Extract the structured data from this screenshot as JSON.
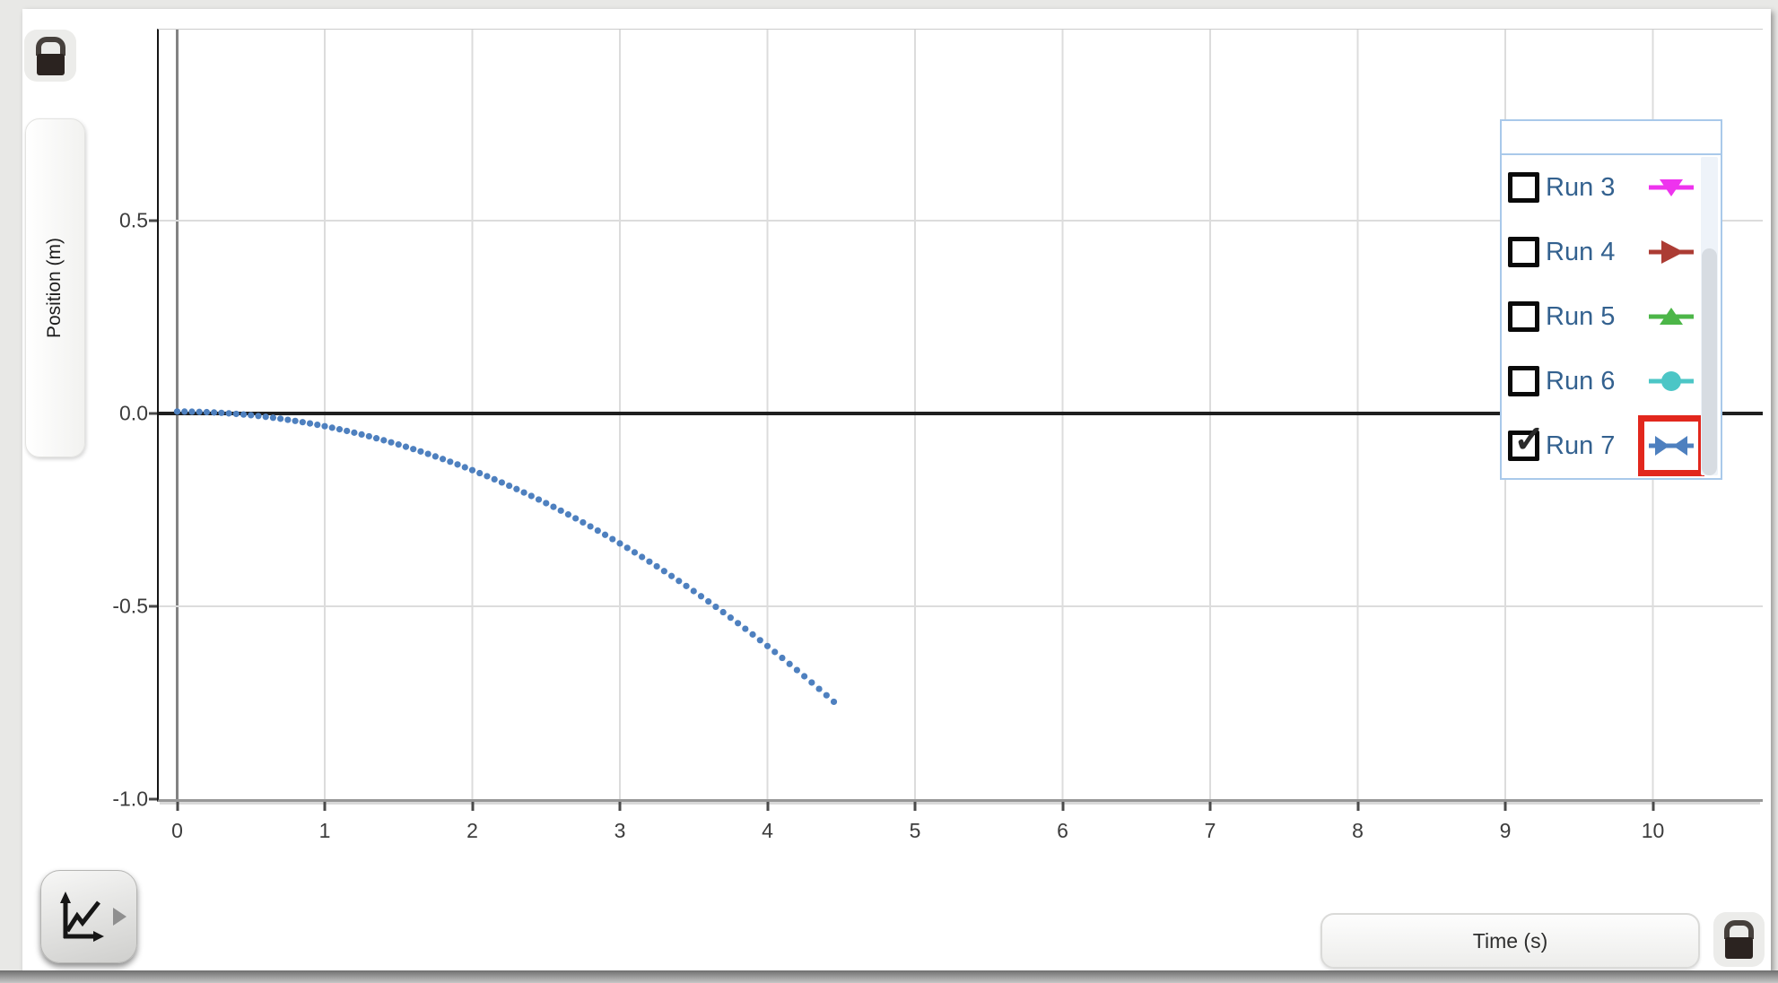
{
  "app": {
    "name": "graph-analysis-view"
  },
  "colors": {
    "curve": "#4e80bf",
    "highlight_box": "#e2271d",
    "legend_text": "#33618f",
    "legend_border": "#a9c9ea",
    "grid_light": "#dcdcdc",
    "grid_zero_time": "#828282",
    "zero_line": "#1f1f1f",
    "axis_bottom": "#979797",
    "run3": "#ee33ee",
    "run4": "#ac3c34",
    "run5": "#4cb648",
    "run6": "#4cc6c6",
    "run7": "#4e80bf"
  },
  "controls": {
    "y_axis_label": "Position (m)",
    "x_axis_label": "Time (s)",
    "top_left_lock": "padlock-icon",
    "bottom_right_lock": "padlock-icon",
    "graph_tools_button": "graph-tools-icon"
  },
  "legend": {
    "runs": [
      {
        "label": "Run 3",
        "checked": false,
        "marker": "triangle-down",
        "color": "#ee33ee",
        "highlighted": false
      },
      {
        "label": "Run 4",
        "checked": false,
        "marker": "triangle-right",
        "color": "#ac3c34",
        "highlighted": false
      },
      {
        "label": "Run 5",
        "checked": false,
        "marker": "triangle-up",
        "color": "#4cb648",
        "highlighted": false
      },
      {
        "label": "Run 6",
        "checked": false,
        "marker": "circle",
        "color": "#4cc6c6",
        "highlighted": false
      },
      {
        "label": "Run 7",
        "checked": true,
        "marker": "bowtie",
        "color": "#4e80bf",
        "highlighted": true
      }
    ]
  },
  "chart_data": {
    "type": "scatter",
    "title": "",
    "xlabel": "Time (s)",
    "ylabel": "Position (m)",
    "xlim": [
      -0.13,
      10.75
    ],
    "ylim": [
      -1.0,
      1.0
    ],
    "grid": true,
    "x_ticks": [
      0,
      1,
      2,
      3,
      4,
      5,
      6,
      7,
      8,
      9,
      10
    ],
    "x_tick_labels": [
      "0",
      "1",
      "2",
      "3",
      "4",
      "5",
      "6",
      "7",
      "8",
      "9",
      "10"
    ],
    "y_ticks": [
      0.5,
      0.0,
      -0.5,
      -1.0
    ],
    "y_tick_labels": [
      "0.5",
      "0.0",
      "-0.5",
      "-1.0"
    ],
    "legend_position": "upper right",
    "series": [
      {
        "name": "Run 7",
        "color": "#4e80bf",
        "marker": "point",
        "x": [
          0,
          0.05,
          0.1,
          0.15,
          0.2,
          0.25,
          0.3,
          0.35,
          0.4,
          0.45,
          0.5,
          0.55,
          0.6,
          0.65,
          0.7,
          0.75,
          0.8,
          0.85,
          0.9,
          0.95,
          1,
          1.05,
          1.1,
          1.15,
          1.2,
          1.25,
          1.3,
          1.35,
          1.4,
          1.45,
          1.5,
          1.55,
          1.6,
          1.65,
          1.7,
          1.75,
          1.8,
          1.85,
          1.9,
          1.95,
          2,
          2.05,
          2.1,
          2.15,
          2.2,
          2.25,
          2.3,
          2.35,
          2.4,
          2.45,
          2.5,
          2.55,
          2.6,
          2.65,
          2.7,
          2.75,
          2.8,
          2.85,
          2.9,
          2.95,
          3,
          3.05,
          3.1,
          3.15,
          3.2,
          3.25,
          3.3,
          3.35,
          3.4,
          3.45,
          3.5,
          3.55,
          3.6,
          3.65,
          3.7,
          3.75,
          3.8,
          3.85,
          3.9,
          3.95,
          4,
          4.05,
          4.1,
          4.15,
          4.2,
          4.25,
          4.3,
          4.35,
          4.4,
          4.45
        ],
        "y": [
          0.005,
          0.0049,
          0.0046,
          0.0041,
          0.0035,
          0.0026,
          0.0016,
          0.0003,
          -0.0011,
          -0.0027,
          -0.0045,
          -0.0065,
          -0.0087,
          -0.0111,
          -0.0136,
          -0.0164,
          -0.0193,
          -0.0225,
          -0.0258,
          -0.0293,
          -0.033,
          -0.0369,
          -0.041,
          -0.0453,
          -0.0497,
          -0.0544,
          -0.0592,
          -0.0643,
          -0.0695,
          -0.0749,
          -0.0805,
          -0.0863,
          -0.0923,
          -0.0985,
          -0.1048,
          -0.1114,
          -0.1181,
          -0.1251,
          -0.1322,
          -0.1395,
          -0.147,
          -0.1547,
          -0.1626,
          -0.1707,
          -0.1789,
          -0.1874,
          -0.196,
          -0.2049,
          -0.2139,
          -0.2231,
          -0.2325,
          -0.2421,
          -0.2519,
          -0.2619,
          -0.272,
          -0.2824,
          -0.2929,
          -0.3037,
          -0.3146,
          -0.3257,
          -0.337,
          -0.3485,
          -0.3602,
          -0.3721,
          -0.3841,
          -0.3964,
          -0.4088,
          -0.4215,
          -0.4343,
          -0.4473,
          -0.4605,
          -0.4739,
          -0.4875,
          -0.5013,
          -0.5152,
          -0.5294,
          -0.5437,
          -0.5583,
          -0.573,
          -0.5879,
          -0.603,
          -0.6183,
          -0.6338,
          -0.6495,
          -0.6653,
          -0.6814,
          -0.6976,
          -0.7141,
          -0.7307,
          -0.7475
        ]
      }
    ]
  }
}
